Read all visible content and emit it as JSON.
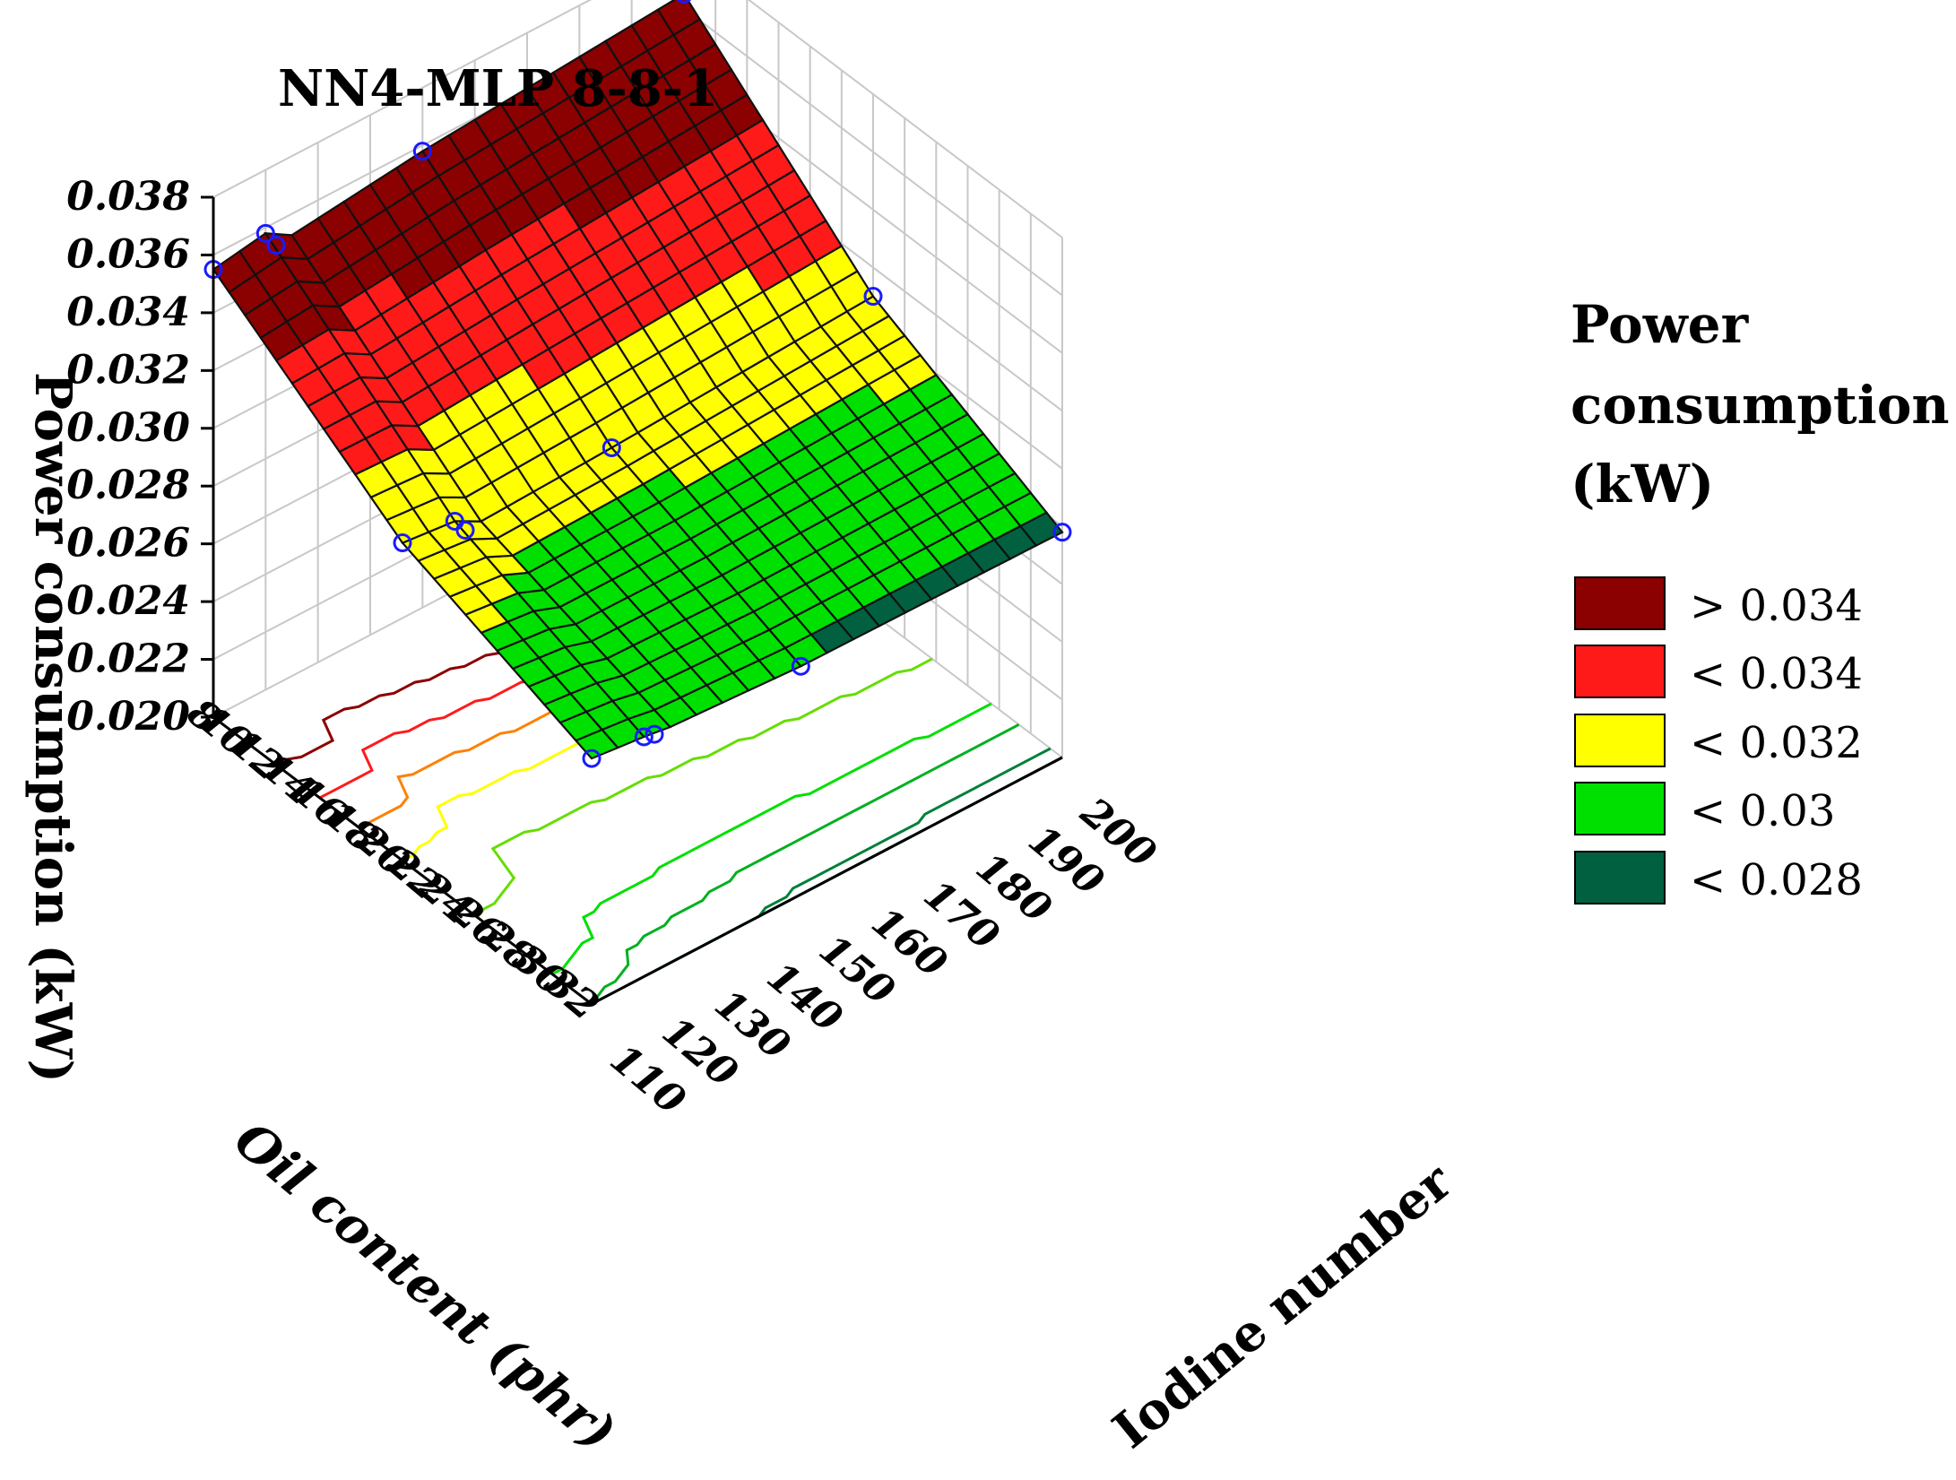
{
  "chart_data": {
    "type": "surface3d",
    "title": "NN4-MLP 8-8-1",
    "x_axis": {
      "label": "Oil content (phr)",
      "range": [
        8,
        32
      ],
      "ticks": [
        "8",
        "10",
        "12",
        "14",
        "16",
        "18",
        "20",
        "22",
        "24",
        "26",
        "28",
        "30",
        "32"
      ]
    },
    "y_axis": {
      "label": "Iodine number",
      "range": [
        110,
        200
      ],
      "ticks": [
        "110",
        "120",
        "130",
        "140",
        "150",
        "160",
        "170",
        "180",
        "190",
        "200"
      ]
    },
    "z_axis": {
      "label": "Power consumption (kW)",
      "range": [
        0.02,
        0.038
      ],
      "ticks": [
        "0.020",
        "0.022",
        "0.024",
        "0.026",
        "0.028",
        "0.030",
        "0.032",
        "0.034",
        "0.036",
        "0.038"
      ]
    },
    "legend": {
      "title_lines": [
        "Power",
        "consumption",
        "(kW)"
      ],
      "position": "right",
      "entries": [
        {
          "label": "> 0.034",
          "color": "#8b0000"
        },
        {
          "label": "< 0.034",
          "color": "#ff1a1a"
        },
        {
          "label": "< 0.032",
          "color": "#ffff00"
        },
        {
          "label": "< 0.03",
          "color": "#00e000"
        },
        {
          "label": "< 0.028",
          "color": "#006040"
        }
      ]
    },
    "data_points": [
      {
        "oil": 8,
        "iodine": 110,
        "power": 0.0355
      },
      {
        "oil": 8,
        "iodine": 120,
        "power": 0.0358
      },
      {
        "oil": 8,
        "iodine": 122,
        "power": 0.0352
      },
      {
        "oil": 8,
        "iodine": 150,
        "power": 0.0358
      },
      {
        "oil": 8,
        "iodine": 200,
        "power": 0.0365
      },
      {
        "oil": 20,
        "iodine": 110,
        "power": 0.031
      },
      {
        "oil": 20,
        "iodine": 120,
        "power": 0.0308
      },
      {
        "oil": 20,
        "iodine": 122,
        "power": 0.0303
      },
      {
        "oil": 20,
        "iodine": 150,
        "power": 0.0305
      },
      {
        "oil": 20,
        "iodine": 200,
        "power": 0.031
      },
      {
        "oil": 32,
        "iodine": 110,
        "power": 0.0285
      },
      {
        "oil": 32,
        "iodine": 120,
        "power": 0.0283
      },
      {
        "oil": 32,
        "iodine": 122,
        "power": 0.0282
      },
      {
        "oil": 32,
        "iodine": 150,
        "power": 0.0279
      },
      {
        "oil": 32,
        "iodine": 200,
        "power": 0.0278
      }
    ]
  }
}
